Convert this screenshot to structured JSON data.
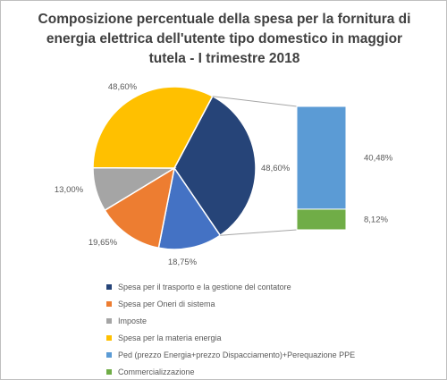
{
  "chart_data": {
    "type": "bar-of-pie",
    "title": "Composizione percentuale della spesa per la fornitura di energia elettrica dell'utente tipo domestico in maggior tutela - I trimestre 2018",
    "pie": {
      "slices": [
        {
          "name": "Spesa per il trasporto e la gestione del contatore",
          "value": 18.75,
          "label": "18,75%",
          "color": "#4472c4"
        },
        {
          "name": "Spesa per Oneri di sistema",
          "value": 19.65,
          "label": "19,65%",
          "color": "#ed7d31"
        },
        {
          "name": "Imposte",
          "value": 13.0,
          "label": "13,00%",
          "color": "#a5a5a5"
        },
        {
          "name": "Spesa per la materia energia",
          "value": 48.6,
          "label": "48,60%",
          "color": "#ffc000",
          "secondary_label": "48,60%",
          "secondary_color": "#264478"
        }
      ],
      "draw_order": [
        3,
        0,
        1,
        2
      ]
    },
    "bar": {
      "segments": [
        {
          "name": "Ped (prezzo Energia+prezzo Dispacciamento)+Perequazione PPE",
          "value": 40.48,
          "label": "40,48%",
          "color": "#5b9bd5"
        },
        {
          "name": "Commercializzazione",
          "value": 8.12,
          "label": "8,12%",
          "color": "#70ad47"
        }
      ]
    },
    "legend": {
      "position": "bottom",
      "items": [
        {
          "name": "Spesa per il trasporto e la gestione del contatore",
          "color": "#264478"
        },
        {
          "name": "Spesa per Oneri di sistema",
          "color": "#ed7d31"
        },
        {
          "name": "Imposte",
          "color": "#a5a5a5"
        },
        {
          "name": "Spesa per la materia energia",
          "color": "#ffc000"
        },
        {
          "name": "Ped (prezzo Energia+prezzo Dispacciamento)+Perequazione PPE",
          "color": "#5b9bd5"
        },
        {
          "name": "Commercializzazione",
          "color": "#70ad47"
        }
      ]
    }
  }
}
